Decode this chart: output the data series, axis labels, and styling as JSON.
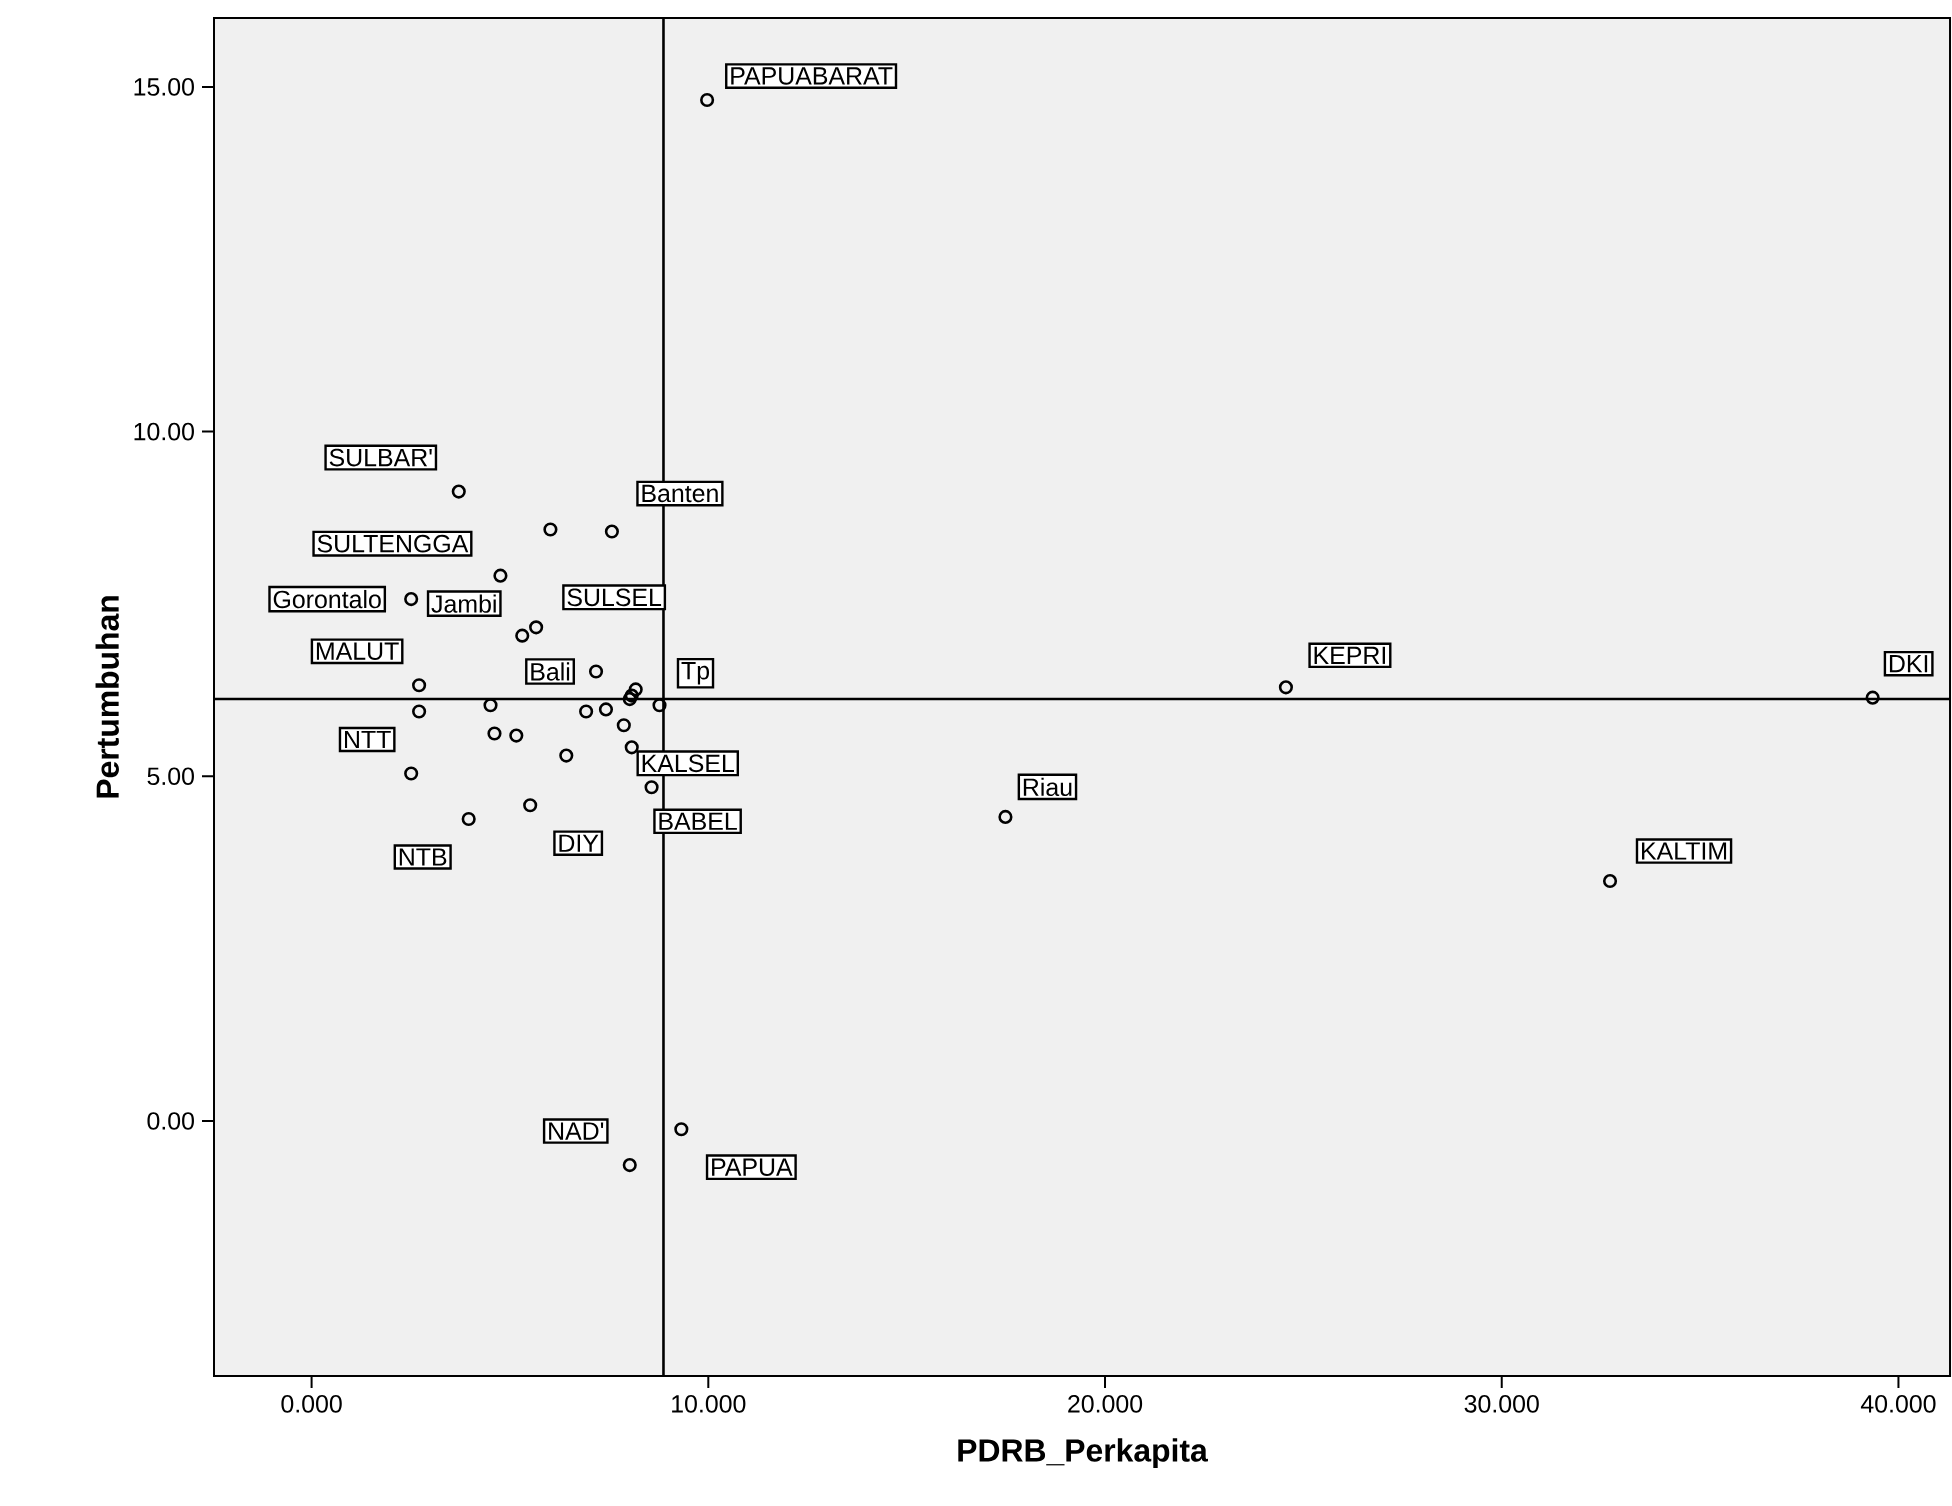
{
  "chart_data": {
    "type": "scatter",
    "xlabel": "PDRB_Perkapita",
    "ylabel": "Pertumbuhan",
    "x": [
      3.71,
      6.02,
      7.57,
      4.76,
      2.51,
      5.66,
      5.31,
      7.17,
      2.71,
      2.71,
      4.51,
      8.17,
      8.07,
      8.02,
      8.77,
      6.92,
      7.42,
      7.87,
      4.61,
      5.16,
      6.42,
      8.07,
      2.51,
      8.57,
      3.96,
      5.51,
      8.02,
      9.32,
      9.97,
      17.49,
      24.56,
      32.73,
      39.35
    ],
    "values": [
      9.13,
      8.58,
      8.55,
      7.91,
      7.57,
      7.16,
      7.04,
      6.52,
      6.32,
      5.94,
      6.03,
      6.26,
      6.17,
      6.12,
      6.03,
      5.94,
      5.97,
      5.74,
      5.62,
      5.59,
      5.3,
      5.42,
      5.04,
      4.84,
      4.38,
      4.58,
      -0.64,
      -0.12,
      14.81,
      4.41,
      6.29,
      3.48,
      6.14
    ],
    "color": "#000000",
    "marker": "circle",
    "grid": false,
    "xlim": [
      -2.46,
      41.3
    ],
    "ylim": [
      -3.7,
      16.0
    ],
    "xticks": [
      {
        "value": 0,
        "label": "0.000"
      },
      {
        "value": 10,
        "label": "10.000"
      },
      {
        "value": 20,
        "label": "20.000"
      },
      {
        "value": 30,
        "label": "30.000"
      },
      {
        "value": 40,
        "label": "40.000"
      }
    ],
    "yticks": [
      {
        "value": 0,
        "label": "0.00"
      },
      {
        "value": 5,
        "label": "5.00"
      },
      {
        "value": 10,
        "label": "10.00"
      },
      {
        "value": 15,
        "label": "15.00"
      }
    ],
    "ref_lines": [
      {
        "axis": "x",
        "value": 8.87,
        "color": "#000000"
      },
      {
        "axis": "y",
        "value": 6.12,
        "color": "#000000"
      }
    ],
    "annotations": [
      {
        "text": "SULBAR'",
        "x": 3.71,
        "y": 9.13
      },
      {
        "text": "Banten",
        "x": 7.57,
        "y": 8.55
      },
      {
        "text": "SULTENGGA",
        "x": 4.76,
        "y": 7.91
      },
      {
        "text": "Gorontalo",
        "x": 2.51,
        "y": 7.57
      },
      {
        "text": "Jambi",
        "x": 5.31,
        "y": 7.04
      },
      {
        "text": "SULSEL",
        "x": 5.66,
        "y": 7.16
      },
      {
        "text": "MALUT",
        "x": 2.71,
        "y": 6.32
      },
      {
        "text": "Bali",
        "x": 7.17,
        "y": 6.52
      },
      {
        "text": "Tp",
        "x": 8.77,
        "y": 6.03
      },
      {
        "text": "KALSEL",
        "x": 8.07,
        "y": 5.42
      },
      {
        "text": "NTT",
        "x": 2.51,
        "y": 5.04
      },
      {
        "text": "BABEL",
        "x": 8.57,
        "y": 4.84
      },
      {
        "text": "NTB",
        "x": 3.96,
        "y": 4.38
      },
      {
        "text": "DIY",
        "x": 5.51,
        "y": 4.58
      },
      {
        "text": "NAD'",
        "x": 8.02,
        "y": -0.64
      },
      {
        "text": "PAPUA",
        "x": 9.32,
        "y": -0.12
      },
      {
        "text": "PAPUABARAT",
        "x": 9.97,
        "y": 14.81
      },
      {
        "text": "Riau",
        "x": 17.49,
        "y": 4.41
      },
      {
        "text": "KEPRI",
        "x": 24.56,
        "y": 6.29
      },
      {
        "text": "KALTIM",
        "x": 32.73,
        "y": 3.48
      },
      {
        "text": "DKI",
        "x": 39.35,
        "y": 6.14
      }
    ]
  }
}
